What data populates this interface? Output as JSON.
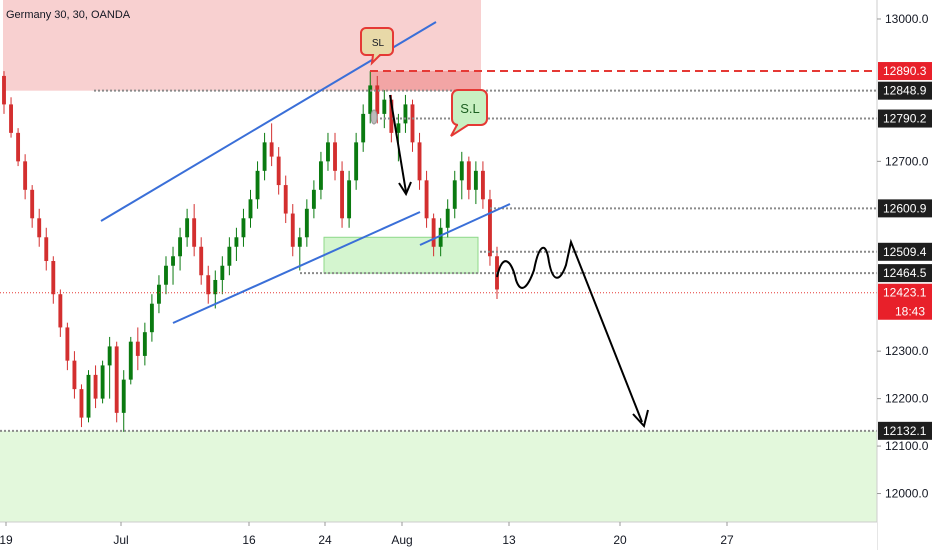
{
  "chart_data": {
    "type": "candlestick",
    "title": "Germany 30, 30, OANDA",
    "ylim": [
      11940,
      13040
    ],
    "y_ticks": [
      12000.0,
      12100.0,
      12200.0,
      12300.0,
      12700.0,
      13000.0
    ],
    "x_ticks": [
      "19",
      "Jul",
      "16",
      "24",
      "Aug",
      "13",
      "20",
      "27"
    ],
    "price_levels": [
      {
        "label": "12890.3",
        "value": 12890.3,
        "style": "dashed-red",
        "badge": "red"
      },
      {
        "label": "12848.9",
        "value": 12848.9,
        "style": "dotted-grey",
        "badge": "dark"
      },
      {
        "label": "12790.2",
        "value": 12790.2,
        "style": "dotted-grey",
        "badge": "dark"
      },
      {
        "label": "12600.9",
        "value": 12600.9,
        "style": "dotted-grey",
        "badge": "dark"
      },
      {
        "label": "12509.4",
        "value": 12509.4,
        "style": "dotted-grey",
        "badge": "dark"
      },
      {
        "label": "12464.5",
        "value": 12464.5,
        "style": "dotted-grey",
        "badge": "dark"
      },
      {
        "label": "12132.1",
        "value": 12132.1,
        "style": "dotted-grey",
        "badge": "dark"
      }
    ],
    "current_price": {
      "label": "12423.1",
      "value": 12423.1,
      "countdown": "18:43"
    },
    "annotations": [
      {
        "text": "SL"
      },
      {
        "text": "S.L"
      }
    ],
    "zones": [
      {
        "name": "resistance",
        "y_range": [
          12848.9,
          13040
        ],
        "color": "#f8d0d0"
      },
      {
        "name": "support",
        "y_range": [
          11940,
          12132.1
        ],
        "color": "#e3f8dc"
      },
      {
        "name": "demand",
        "y_range": [
          12464.5,
          12540
        ],
        "color": "#d4f5cf"
      },
      {
        "name": "supply",
        "y_range": [
          12848.9,
          12890.3
        ],
        "color": "#f2a5a5"
      }
    ],
    "colors": {
      "up": "#0a7a10",
      "down": "#d32f2f",
      "wick": "#333333",
      "trendline": "#3a6fd8",
      "red_line": "#e53935",
      "dark_badge": "#1e1e1e",
      "red_badge": "#e8202a"
    },
    "series": [
      {
        "name": "",
        "ohlc": [
          [
            12880,
            12890,
            12800,
            12820
          ],
          [
            12820,
            12835,
            12750,
            12760
          ],
          [
            12760,
            12770,
            12690,
            12700
          ],
          [
            12700,
            12715,
            12620,
            12640
          ],
          [
            12640,
            12650,
            12560,
            12580
          ],
          [
            12580,
            12600,
            12520,
            12540
          ],
          [
            12540,
            12560,
            12470,
            12490
          ],
          [
            12490,
            12500,
            12400,
            12420
          ],
          [
            12420,
            12430,
            12330,
            12350
          ],
          [
            12350,
            12360,
            12260,
            12280
          ],
          [
            12280,
            12300,
            12200,
            12220
          ],
          [
            12220,
            12230,
            12140,
            12160
          ],
          [
            12160,
            12260,
            12150,
            12250
          ],
          [
            12250,
            12270,
            12180,
            12200
          ],
          [
            12200,
            12280,
            12190,
            12270
          ],
          [
            12270,
            12330,
            12200,
            12310
          ],
          [
            12310,
            12320,
            12150,
            12170
          ],
          [
            12170,
            12260,
            12130,
            12240
          ],
          [
            12240,
            12330,
            12230,
            12320
          ],
          [
            12320,
            12350,
            12260,
            12290
          ],
          [
            12290,
            12360,
            12270,
            12340
          ],
          [
            12340,
            12420,
            12320,
            12400
          ],
          [
            12400,
            12460,
            12380,
            12440
          ],
          [
            12440,
            12500,
            12420,
            12480
          ],
          [
            12480,
            12520,
            12440,
            12500
          ],
          [
            12500,
            12560,
            12470,
            12540
          ],
          [
            12540,
            12600,
            12520,
            12580
          ],
          [
            12580,
            12610,
            12500,
            12520
          ],
          [
            12520,
            12540,
            12440,
            12460
          ],
          [
            12460,
            12480,
            12400,
            12420
          ],
          [
            12420,
            12470,
            12390,
            12450
          ],
          [
            12450,
            12500,
            12420,
            12480
          ],
          [
            12480,
            12540,
            12460,
            12520
          ],
          [
            12520,
            12560,
            12490,
            12540
          ],
          [
            12540,
            12600,
            12520,
            12580
          ],
          [
            12580,
            12640,
            12560,
            12620
          ],
          [
            12620,
            12700,
            12600,
            12680
          ],
          [
            12680,
            12760,
            12660,
            12740
          ],
          [
            12740,
            12780,
            12690,
            12710
          ],
          [
            12710,
            12730,
            12630,
            12650
          ],
          [
            12650,
            12670,
            12570,
            12590
          ],
          [
            12590,
            12610,
            12500,
            12520
          ],
          [
            12520,
            12560,
            12470,
            12540
          ],
          [
            12540,
            12620,
            12520,
            12600
          ],
          [
            12600,
            12660,
            12580,
            12640
          ],
          [
            12640,
            12720,
            12620,
            12700
          ],
          [
            12700,
            12760,
            12680,
            12740
          ],
          [
            12740,
            12760,
            12660,
            12680
          ],
          [
            12680,
            12700,
            12560,
            12580
          ],
          [
            12580,
            12680,
            12560,
            12660
          ],
          [
            12660,
            12760,
            12640,
            12740
          ],
          [
            12740,
            12820,
            12720,
            12800
          ],
          [
            12800,
            12890,
            12780,
            12860
          ],
          [
            12860,
            12880,
            12780,
            12800
          ],
          [
            12800,
            12850,
            12770,
            12830
          ],
          [
            12830,
            12840,
            12740,
            12760
          ],
          [
            12760,
            12800,
            12700,
            12780
          ],
          [
            12780,
            12840,
            12760,
            12820
          ],
          [
            12820,
            12830,
            12720,
            12740
          ],
          [
            12740,
            12760,
            12640,
            12660
          ],
          [
            12660,
            12680,
            12560,
            12580
          ],
          [
            12580,
            12590,
            12500,
            12520
          ],
          [
            12520,
            12580,
            12500,
            12560
          ],
          [
            12560,
            12620,
            12540,
            12600
          ],
          [
            12600,
            12680,
            12580,
            12660
          ],
          [
            12660,
            12720,
            12620,
            12700
          ],
          [
            12700,
            12710,
            12620,
            12640
          ],
          [
            12640,
            12700,
            12610,
            12680
          ],
          [
            12680,
            12700,
            12600,
            12620
          ],
          [
            12620,
            12640,
            12480,
            12500
          ],
          [
            12500,
            12520,
            12410,
            12430
          ]
        ]
      }
    ]
  }
}
